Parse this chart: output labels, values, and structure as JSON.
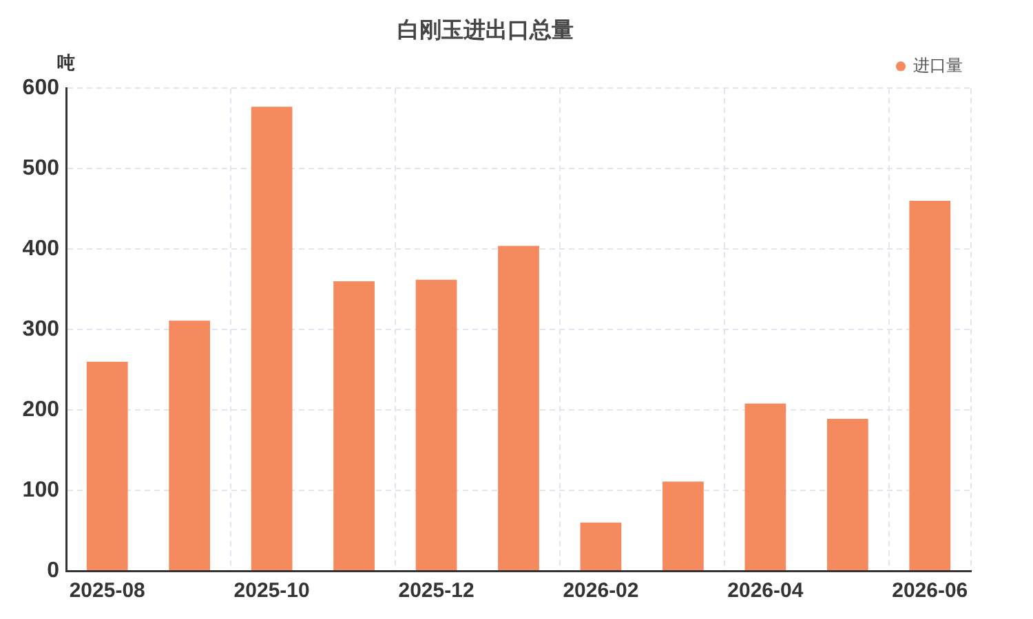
{
  "chart_data": {
    "type": "bar",
    "title": "白刚玉进出口总量",
    "ylabel": "吨",
    "categories": [
      "2025-08",
      null,
      "2025-10",
      null,
      "2025-12",
      null,
      "2026-02",
      null,
      "2026-04",
      null,
      "2026-06"
    ],
    "series": [
      {
        "name": "进口量",
        "color": "#f58a5e",
        "values": [
          260,
          311,
          577,
          360,
          362,
          404,
          60,
          111,
          208,
          189,
          460
        ]
      }
    ],
    "ylim": [
      0,
      600
    ],
    "yticks": [
      0,
      100,
      200,
      300,
      400,
      500,
      600
    ],
    "grid": true,
    "legend": "top right"
  }
}
